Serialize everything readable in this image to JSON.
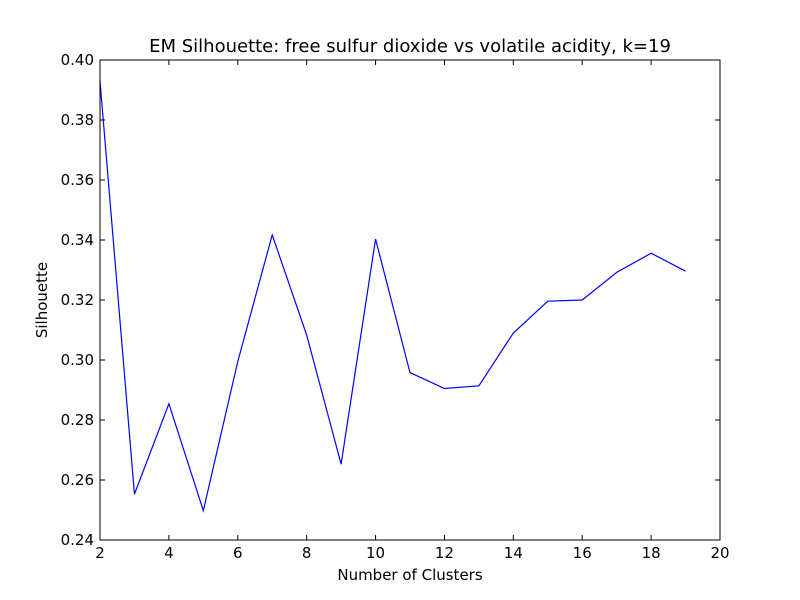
{
  "chart_data": {
    "type": "line",
    "title": "EM Silhouette: free sulfur dioxide vs volatile acidity, k=19",
    "xlabel": "Number of Clusters",
    "ylabel": "Silhouette",
    "xlim": [
      2,
      20
    ],
    "ylim": [
      0.24,
      0.4
    ],
    "x_ticks": [
      2,
      4,
      6,
      8,
      10,
      12,
      14,
      16,
      18,
      20
    ],
    "x_tick_labels": [
      "2",
      "4",
      "6",
      "8",
      "10",
      "12",
      "14",
      "16",
      "18",
      "20"
    ],
    "y_ticks": [
      0.24,
      0.26,
      0.28,
      0.3,
      0.32,
      0.34,
      0.36,
      0.38,
      0.4
    ],
    "y_tick_labels": [
      "0.24",
      "0.26",
      "0.28",
      "0.30",
      "0.32",
      "0.34",
      "0.36",
      "0.38",
      "0.40"
    ],
    "grid": false,
    "series": [
      {
        "color": "#0000ff",
        "x": [
          2,
          3,
          4,
          5,
          6,
          7,
          8,
          9,
          10,
          11,
          12,
          13,
          14,
          15,
          16,
          17,
          18,
          19
        ],
        "y": [
          0.393,
          0.2553,
          0.2854,
          0.2498,
          0.2995,
          0.3417,
          0.3083,
          0.2653,
          0.3403,
          0.2958,
          0.2905,
          0.2914,
          0.309,
          0.3196,
          0.32,
          0.3292,
          0.3356,
          0.3296
        ]
      }
    ]
  }
}
